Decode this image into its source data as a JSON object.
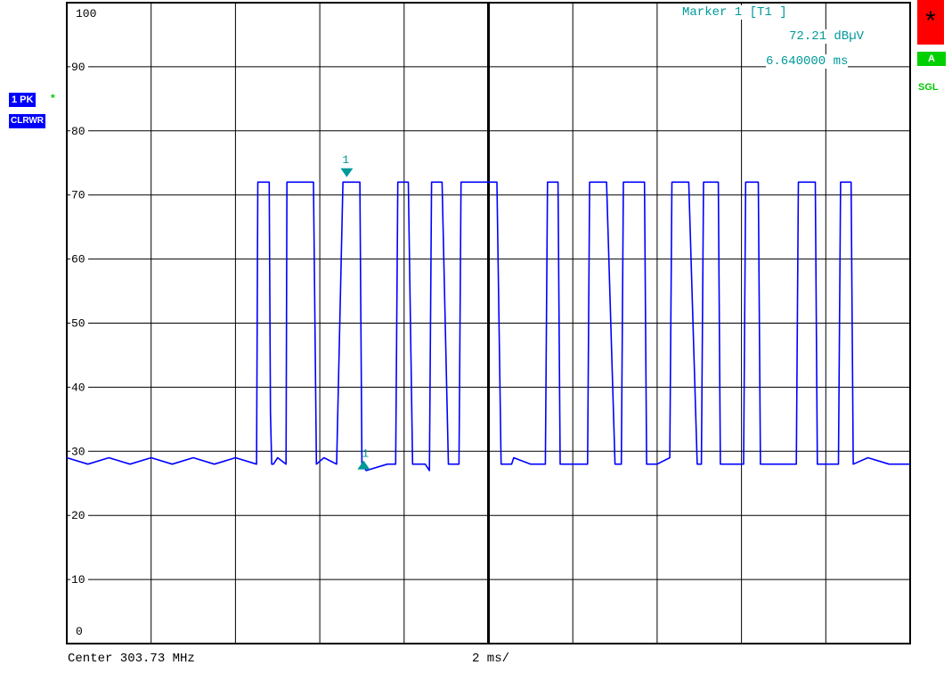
{
  "chart_data": {
    "type": "line",
    "title": "",
    "xlabel": "",
    "ylabel": "",
    "ylim": [
      0,
      100
    ],
    "xlim": [
      0,
      20
    ],
    "yticks": [
      100,
      90,
      80,
      70,
      60,
      50,
      40,
      30,
      20,
      10,
      0
    ],
    "x_divisions": 10,
    "grid": true,
    "series": [
      {
        "color": "#0000ff",
        "x": [
          0,
          0.5,
          1.0,
          1.5,
          2.0,
          2.5,
          3.0,
          3.5,
          4.0,
          4.5,
          4.53,
          4.58,
          4.8,
          4.83,
          4.86,
          4.9,
          5.0,
          5.2,
          5.22,
          5.27,
          5.85,
          5.92,
          6.1,
          6.4,
          6.55,
          6.6,
          6.95,
          7.0,
          7.1,
          7.6,
          7.8,
          7.85,
          8.1,
          8.2,
          8.5,
          8.6,
          8.65,
          8.9,
          9.05,
          9.3,
          9.35,
          9.75,
          9.8,
          10.2,
          10.3,
          10.55,
          10.6,
          11.0,
          11.35,
          11.4,
          11.65,
          11.7,
          12.2,
          12.35,
          12.4,
          12.75,
          12.8,
          13.0,
          13.15,
          13.2,
          13.7,
          13.75,
          14.0,
          14.3,
          14.35,
          14.7,
          14.75,
          14.95,
          15.05,
          15.1,
          15.45,
          15.5,
          15.8,
          16.05,
          16.1,
          16.4,
          16.45,
          16.75,
          17.3,
          17.35,
          17.75,
          17.8,
          18.1,
          18.3,
          18.35,
          18.6,
          18.65,
          19.0,
          19.5,
          20.0
        ],
        "y": [
          29,
          28,
          29,
          28,
          29,
          28,
          29,
          28,
          29,
          28,
          72,
          72,
          72,
          36,
          28,
          28,
          29,
          28,
          72,
          72,
          72,
          28,
          29,
          28,
          72,
          72,
          72,
          28,
          27,
          28,
          28,
          72,
          72,
          28,
          28,
          27,
          72,
          72,
          28,
          28,
          72,
          72,
          72,
          72,
          28,
          28,
          29,
          28,
          28,
          72,
          72,
          28,
          28,
          28,
          72,
          72,
          72,
          28,
          28,
          72,
          72,
          28,
          28,
          29,
          72,
          72,
          72,
          28,
          28,
          72,
          72,
          28,
          28,
          28,
          72,
          72,
          28,
          28,
          28,
          72,
          72,
          28,
          28,
          28,
          72,
          72,
          28,
          29,
          28,
          28
        ]
      }
    ],
    "marker": {
      "x": 6.64,
      "y": 72.21
    }
  },
  "marker_info": {
    "line1": "Marker 1 [T1 ]",
    "line2": "72.21 dBµV",
    "line3": "6.640000 ms",
    "symbol_label": "1"
  },
  "footer": {
    "center": "Center 303.73 MHz",
    "span": "2 ms/"
  },
  "badges": {
    "trace": "1 PK",
    "trace_flag": "*",
    "mode": "CLRWR",
    "star": "*",
    "a": "A",
    "sgl": "SGL"
  },
  "colors": {
    "trace": "#0000ff",
    "marker": "#009999",
    "grid": "#000000"
  }
}
